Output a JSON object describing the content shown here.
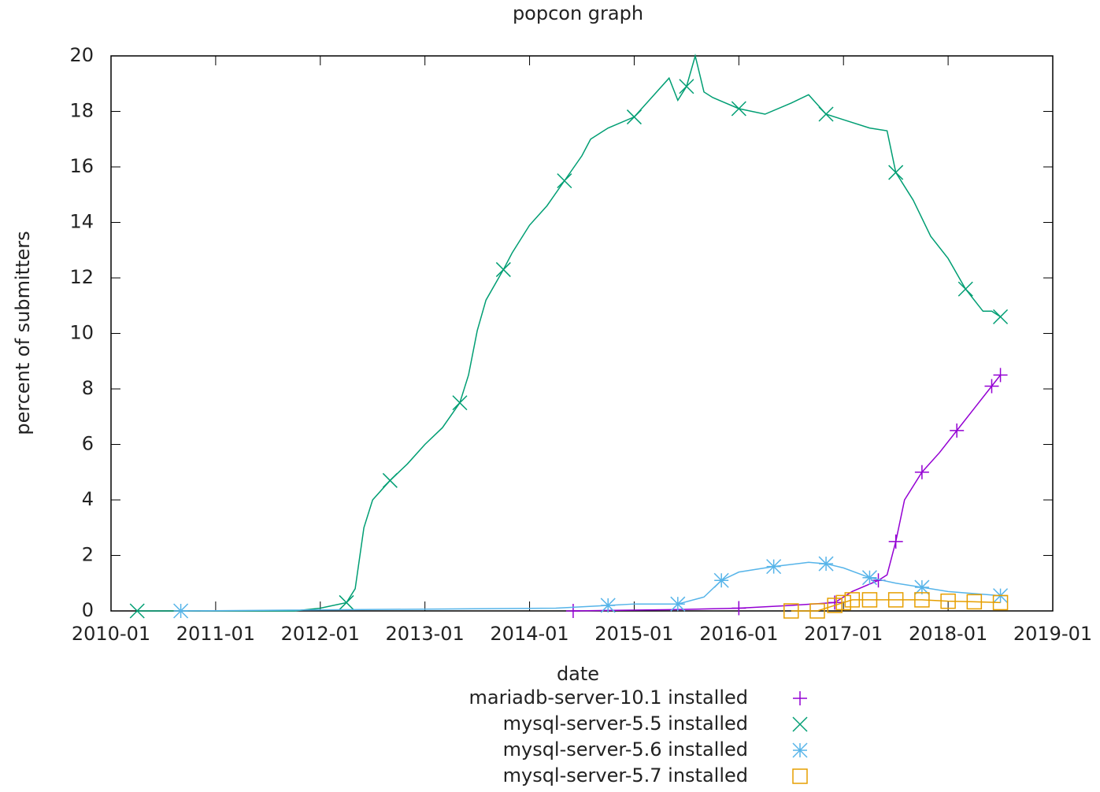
{
  "chart_data": {
    "type": "line",
    "title": "popcon graph",
    "xlabel": "date",
    "ylabel": "percent of submitters",
    "xlim": [
      "2010-01",
      "2019-01"
    ],
    "xticks": [
      "2010-01",
      "2011-01",
      "2012-01",
      "2013-01",
      "2014-01",
      "2015-01",
      "2016-01",
      "2017-01",
      "2018-01",
      "2019-01"
    ],
    "ylim": [
      0,
      20
    ],
    "yticks": [
      0,
      2,
      4,
      6,
      8,
      10,
      12,
      14,
      16,
      18,
      20
    ],
    "series": [
      {
        "name": "mariadb-server-10.1 installed",
        "color": "#9400d3",
        "x": [
          "2014-06",
          "2015-06",
          "2016-01",
          "2016-07",
          "2016-12",
          "2017-02",
          "2017-05",
          "2017-06",
          "2017-07",
          "2017-08",
          "2017-10",
          "2017-12",
          "2018-02",
          "2018-04",
          "2018-06",
          "2018-07"
        ],
        "values": [
          0,
          0.05,
          0.1,
          0.2,
          0.3,
          0.7,
          1.1,
          1.3,
          2.5,
          4.0,
          5.0,
          5.7,
          6.5,
          7.3,
          8.1,
          8.5
        ]
      },
      {
        "name": "mysql-server-5.5 installed",
        "color": "#009e73",
        "x": [
          "2010-04",
          "2011-01",
          "2011-10",
          "2012-01",
          "2012-04",
          "2012-05",
          "2012-06",
          "2012-07",
          "2012-09",
          "2012-11",
          "2013-01",
          "2013-03",
          "2013-05",
          "2013-06",
          "2013-07",
          "2013-08",
          "2013-10",
          "2013-11",
          "2014-01",
          "2014-03",
          "2014-05",
          "2014-07",
          "2014-08",
          "2014-10",
          "2015-01",
          "2015-03",
          "2015-05",
          "2015-06",
          "2015-07",
          "2015-08",
          "2015-09",
          "2015-10",
          "2016-01",
          "2016-04",
          "2016-07",
          "2016-09",
          "2016-11",
          "2017-01",
          "2017-04",
          "2017-06",
          "2017-07",
          "2017-09",
          "2017-11",
          "2018-01",
          "2018-03",
          "2018-05",
          "2018-06",
          "2018-07"
        ],
        "values": [
          0,
          0,
          0,
          0.1,
          0.3,
          0.8,
          3.0,
          4.0,
          4.7,
          5.3,
          6.0,
          6.6,
          7.5,
          8.5,
          10.1,
          11.2,
          12.3,
          12.9,
          13.9,
          14.6,
          15.5,
          16.4,
          17.0,
          17.4,
          17.8,
          18.5,
          19.2,
          18.4,
          18.9,
          20.0,
          18.7,
          18.5,
          18.1,
          17.9,
          18.3,
          18.6,
          17.9,
          17.7,
          17.4,
          17.3,
          15.8,
          14.8,
          13.5,
          12.7,
          11.6,
          10.8,
          10.8,
          10.6
        ]
      },
      {
        "name": "mysql-server-5.6 installed",
        "color": "#56b4e9",
        "x": [
          "2010-09",
          "2014-04",
          "2014-10",
          "2015-01",
          "2015-06",
          "2015-09",
          "2015-11",
          "2016-01",
          "2016-05",
          "2016-09",
          "2016-11",
          "2017-01",
          "2017-04",
          "2017-07",
          "2017-10",
          "2018-01",
          "2018-07"
        ],
        "values": [
          0,
          0.1,
          0.2,
          0.25,
          0.25,
          0.5,
          1.1,
          1.4,
          1.6,
          1.75,
          1.7,
          1.55,
          1.2,
          1.0,
          0.85,
          0.7,
          0.55
        ]
      },
      {
        "name": "mysql-server-5.7 installed",
        "color": "#e69f00",
        "x": [
          "2016-07",
          "2016-10",
          "2016-12",
          "2017-01",
          "2017-02",
          "2017-04",
          "2017-07",
          "2017-10",
          "2018-01",
          "2018-04",
          "2018-07"
        ],
        "values": [
          0,
          0,
          0.2,
          0.3,
          0.4,
          0.4,
          0.4,
          0.4,
          0.35,
          0.33,
          0.3
        ]
      }
    ]
  }
}
